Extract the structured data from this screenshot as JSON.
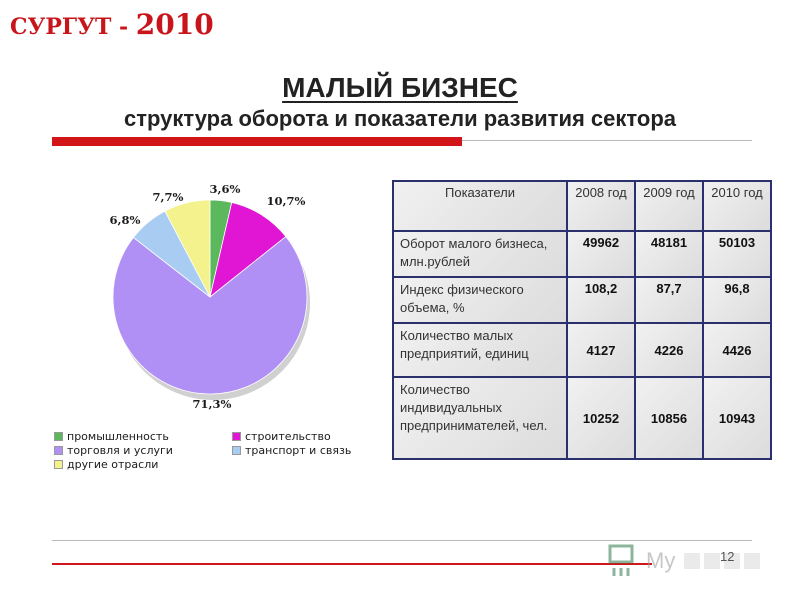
{
  "header": {
    "city": "СУРГУТ - ",
    "year": "2010"
  },
  "title": "МАЛЫЙ БИЗНЕС",
  "subtitle": "структура оборота и показатели развития сектора",
  "chart_data": {
    "type": "pie",
    "slices": [
      {
        "name": "промышленность",
        "value": 3.6,
        "label": "3,6%",
        "color": "#5cb85c"
      },
      {
        "name": "строительство",
        "value": 10.7,
        "label": "10,7%",
        "color": "#e016d4"
      },
      {
        "name": "торговля и услуги",
        "value": 71.3,
        "label": "71,3%",
        "color": "#b190f5"
      },
      {
        "name": "транспорт и связь",
        "value": 6.8,
        "label": "6,8%",
        "color": "#a9cdf2"
      },
      {
        "name": "другие отрасли",
        "value": 7.7,
        "label": "7,7%",
        "color": "#f3f28c"
      }
    ],
    "legend_placement": "bottom"
  },
  "table": {
    "headers": [
      "Показатели",
      "2008 год",
      "2009 год",
      "2010 год"
    ],
    "rows": [
      {
        "label": "Оборот малого бизнеса, млн.рублей",
        "values": [
          "49962",
          "48181",
          "50103"
        ]
      },
      {
        "label": "Индекс физического объема, %",
        "values": [
          "108,2",
          "87,7",
          "96,8"
        ]
      },
      {
        "label": "Количество малых предприятий, единиц",
        "values": [
          "4127",
          "4226",
          "4426"
        ]
      },
      {
        "label": "Количество индивидуальных предпринимателей, чел.",
        "values": [
          "10252",
          "10856",
          "10943"
        ]
      }
    ]
  },
  "footer": {
    "page": "12"
  },
  "colors": {
    "accent_red": "#d21518",
    "table_border": "#2a2f6e"
  }
}
